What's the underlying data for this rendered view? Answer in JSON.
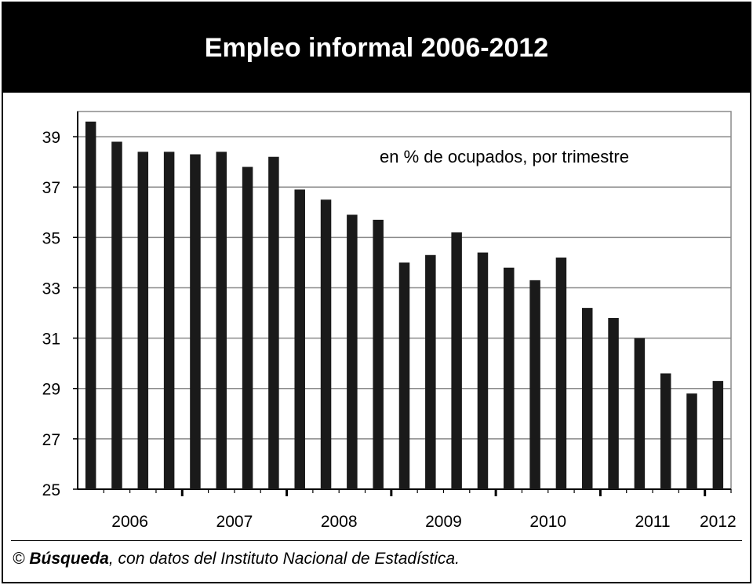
{
  "title": "Empleo informal 2006-2012",
  "source": {
    "copyright": "©",
    "brand": "Búsqueda",
    "text": ", con datos del Instituto Nacional de Estadística."
  },
  "chart_data": {
    "type": "bar",
    "title": "Empleo informal 2006-2012",
    "annotation": "en % de ocupados, por trimestre",
    "ylim": [
      25,
      40
    ],
    "yticks": [
      25,
      27,
      29,
      31,
      33,
      35,
      37,
      39
    ],
    "grid": true,
    "bar_color": "#1a1a1a",
    "years": [
      "2006",
      "2007",
      "2008",
      "2009",
      "2010",
      "2011",
      "2012"
    ],
    "year_quarter_counts": [
      4,
      4,
      4,
      4,
      4,
      4,
      1
    ],
    "values": [
      39.6,
      38.8,
      38.4,
      38.4,
      38.3,
      38.4,
      37.8,
      38.2,
      36.9,
      36.5,
      35.9,
      35.7,
      34.0,
      34.3,
      35.2,
      34.4,
      33.8,
      33.3,
      34.2,
      32.2,
      31.8,
      31.0,
      29.6,
      28.8,
      29.3
    ]
  }
}
